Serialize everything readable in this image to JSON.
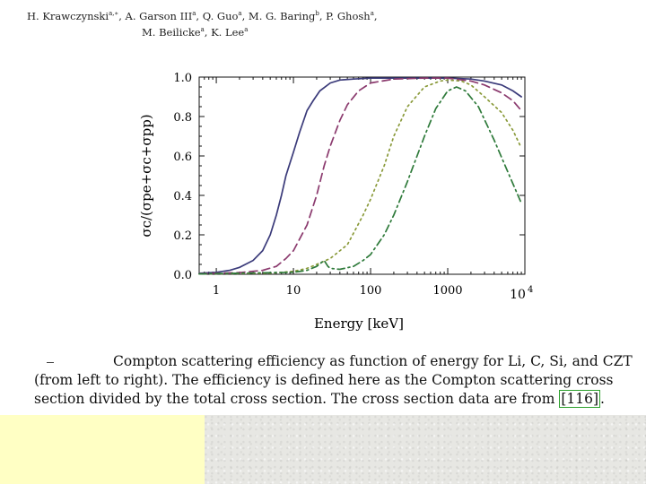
{
  "header": {
    "authors_line1": "H. Krawczynski, A. Garson III, Q. Guo, M. G. Baring, P. Ghosh,",
    "authors_line1_parts": [
      {
        "name": "H. Krawczynski",
        "sup": "a,∗"
      },
      {
        "name": ", A. Garson III",
        "sup": "a"
      },
      {
        "name": ", Q. Guo",
        "sup": "a"
      },
      {
        "name": ", M. G. Baring",
        "sup": "b"
      },
      {
        "name": ", P. Ghosh",
        "sup": "a"
      },
      {
        "name": ",",
        "sup": ""
      }
    ],
    "authors_line2_parts": [
      {
        "name": "M. Beilicke",
        "sup": "a"
      },
      {
        "name": ", K. Lee",
        "sup": "a"
      }
    ]
  },
  "figure": {
    "ylabel": "σc/(σpe+σc+σpp)",
    "xlabel": "Energy [keV]"
  },
  "chart_data": {
    "type": "line",
    "xlabel": "Energy [keV]",
    "ylabel": "σc/(σpe+σc+σpp)",
    "xscale": "log",
    "xlim": [
      0.6,
      10000
    ],
    "ylim": [
      0,
      1.0
    ],
    "xticks": [
      "1",
      "10",
      "100",
      "1000",
      "10^4"
    ],
    "yticks": [
      "0.0",
      "0.2",
      "0.4",
      "0.6",
      "0.8",
      "1.0"
    ],
    "series": [
      {
        "style": "solid",
        "color": "#3b3b7a",
        "points": [
          [
            0.6,
            0.005
          ],
          [
            1,
            0.01
          ],
          [
            1.5,
            0.02
          ],
          [
            2,
            0.035
          ],
          [
            3,
            0.07
          ],
          [
            4,
            0.12
          ],
          [
            5,
            0.2
          ],
          [
            6,
            0.3
          ],
          [
            7,
            0.4
          ],
          [
            8,
            0.5
          ],
          [
            10,
            0.62
          ],
          [
            12,
            0.72
          ],
          [
            15,
            0.83
          ],
          [
            18,
            0.88
          ],
          [
            22,
            0.93
          ],
          [
            30,
            0.97
          ],
          [
            40,
            0.985
          ],
          [
            60,
            0.99
          ],
          [
            100,
            0.995
          ],
          [
            300,
            0.995
          ],
          [
            1000,
            0.995
          ],
          [
            2000,
            0.99
          ],
          [
            3000,
            0.98
          ],
          [
            5000,
            0.96
          ],
          [
            7000,
            0.93
          ],
          [
            9000,
            0.9
          ]
        ]
      },
      {
        "style": "dashed",
        "color": "#8b3a6e",
        "points": [
          [
            0.6,
            0.003
          ],
          [
            2,
            0.008
          ],
          [
            4,
            0.02
          ],
          [
            6,
            0.04
          ],
          [
            8,
            0.08
          ],
          [
            10,
            0.12
          ],
          [
            15,
            0.25
          ],
          [
            20,
            0.4
          ],
          [
            25,
            0.55
          ],
          [
            30,
            0.65
          ],
          [
            40,
            0.78
          ],
          [
            50,
            0.86
          ],
          [
            70,
            0.93
          ],
          [
            100,
            0.97
          ],
          [
            200,
            0.99
          ],
          [
            500,
            0.995
          ],
          [
            1000,
            0.995
          ],
          [
            2000,
            0.98
          ],
          [
            3000,
            0.96
          ],
          [
            5000,
            0.92
          ],
          [
            7000,
            0.88
          ],
          [
            9000,
            0.83
          ]
        ]
      },
      {
        "style": "dotted",
        "color": "#8a9a3a",
        "points": [
          [
            0.6,
            0.002
          ],
          [
            5,
            0.005
          ],
          [
            10,
            0.015
          ],
          [
            15,
            0.03
          ],
          [
            20,
            0.05
          ],
          [
            30,
            0.08
          ],
          [
            50,
            0.15
          ],
          [
            80,
            0.3
          ],
          [
            100,
            0.38
          ],
          [
            150,
            0.55
          ],
          [
            200,
            0.7
          ],
          [
            300,
            0.85
          ],
          [
            500,
            0.95
          ],
          [
            800,
            0.98
          ],
          [
            1000,
            0.985
          ],
          [
            1500,
            0.98
          ],
          [
            2000,
            0.96
          ],
          [
            3000,
            0.9
          ],
          [
            5000,
            0.82
          ],
          [
            7000,
            0.73
          ],
          [
            9000,
            0.64
          ]
        ]
      },
      {
        "style": "dash-dot",
        "color": "#2e7a3a",
        "points": [
          [
            0.6,
            0.002
          ],
          [
            10,
            0.01
          ],
          [
            15,
            0.02
          ],
          [
            20,
            0.04
          ],
          [
            25,
            0.07
          ],
          [
            28,
            0.04
          ],
          [
            30,
            0.03
          ],
          [
            40,
            0.025
          ],
          [
            60,
            0.04
          ],
          [
            80,
            0.07
          ],
          [
            100,
            0.1
          ],
          [
            150,
            0.2
          ],
          [
            200,
            0.3
          ],
          [
            300,
            0.47
          ],
          [
            500,
            0.7
          ],
          [
            700,
            0.84
          ],
          [
            1000,
            0.93
          ],
          [
            1300,
            0.95
          ],
          [
            1700,
            0.93
          ],
          [
            2500,
            0.85
          ],
          [
            4000,
            0.68
          ],
          [
            6000,
            0.52
          ],
          [
            9000,
            0.36
          ]
        ]
      }
    ]
  },
  "caption": {
    "pre": "Compton scattering efficiency as function of energy for Li, C, Si, and CZT (from left to right).  The efficiency is defined here as the Compton scattering cross section divided by the total cross section.  The cross section data are from ",
    "ref": "[116]",
    "post": "."
  }
}
